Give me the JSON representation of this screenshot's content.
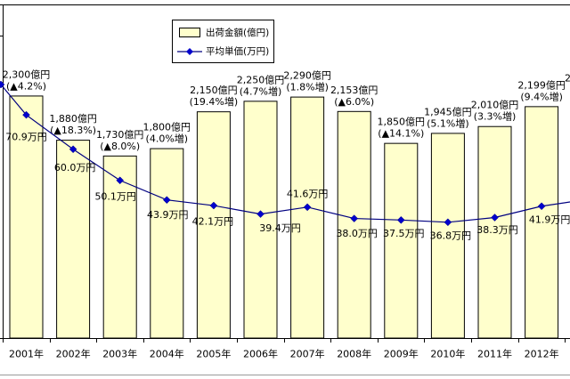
{
  "chart_data": {
    "type": "bar",
    "categories": [
      "2001年",
      "2002年",
      "2003年",
      "2004年",
      "2005年",
      "2006年",
      "2007年",
      "2008年",
      "2009年",
      "2010年",
      "2011年",
      "2012年"
    ],
    "series": [
      {
        "name": "出荷金額(億円)",
        "type": "bar",
        "axis": "primary",
        "values": [
          2300,
          1880,
          1730,
          1800,
          2150,
          2250,
          2290,
          2153,
          1850,
          1945,
          2010,
          2199
        ],
        "value_labels": [
          "2,300億円",
          "1,880億円",
          "1,730億円",
          "1,800億円",
          "2,150億円",
          "2,250億円",
          "2,290億円",
          "2,153億円",
          "1,850億円",
          "1,945億円",
          "2,010億円",
          "2,199億円"
        ],
        "change_labels": [
          "(▲4.2%)",
          "(▲18.3%)",
          "(▲8.0%)",
          "(4.0%増)",
          "(19.4%増)",
          "(4.7%増)",
          "(1.8%増)",
          "(▲6.0%)",
          "(▲14.1%)",
          "(5.1%増)",
          "(3.3%増)",
          "(9.4%増)"
        ],
        "color": "#FFFFCC",
        "edge_color": "#000000"
      },
      {
        "name": "平均単価(万円)",
        "type": "line",
        "axis": "secondary",
        "values": [
          70.9,
          60.0,
          50.1,
          43.9,
          42.1,
          39.4,
          41.6,
          38.0,
          37.5,
          36.8,
          38.3,
          41.9
        ],
        "value_labels": [
          "70.9万円",
          "60.0万円",
          "50.1万円",
          "43.9万円",
          "42.1万円",
          "39.4万円",
          "41.6万円",
          "38.0万円",
          "37.5万円",
          "36.8万円",
          "38.3万円",
          "41.9万円"
        ],
        "marker": "diamond",
        "color": "#000080",
        "marker_color": "#0000CC"
      }
    ],
    "ylim": [
      0,
      3170
    ],
    "y2lim": [
      0,
      106
    ],
    "grid": false,
    "legend_position": "top-center",
    "clipped_text_right_edge": "2"
  }
}
